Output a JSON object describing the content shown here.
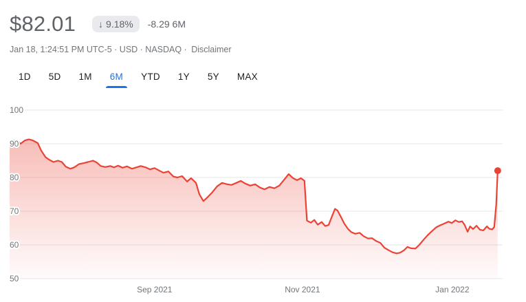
{
  "header": {
    "price": "$82.01",
    "change_badge": {
      "arrow": "↓",
      "percent": "9.18%"
    },
    "change_absolute": "-8.29 6M",
    "meta": "Jan 18, 1:24:51 PM UTC-5 · USD · NASDAQ ·",
    "disclaimer": "Disclaimer"
  },
  "tabs": [
    {
      "label": "1D",
      "active": false
    },
    {
      "label": "5D",
      "active": false
    },
    {
      "label": "1M",
      "active": false
    },
    {
      "label": "6M",
      "active": true
    },
    {
      "label": "YTD",
      "active": false
    },
    {
      "label": "1Y",
      "active": false
    },
    {
      "label": "5Y",
      "active": false
    },
    {
      "label": "MAX",
      "active": false
    }
  ],
  "colors": {
    "accent_blue": "#1a73e8",
    "line_red": "#ea4335",
    "grid": "#e3e5e8",
    "tick_text": "#70757a",
    "badge_bg": "#e8eaed",
    "muted_text": "#5f6368"
  },
  "chart_data": {
    "type": "area",
    "ylim": [
      50,
      100
    ],
    "yticks": [
      100,
      90,
      80,
      70,
      60,
      50
    ],
    "grid": true,
    "legend": false,
    "xticks": [
      {
        "label": "Sep 2021",
        "f": 0.294
      },
      {
        "label": "Nov 2021",
        "f": 0.594
      },
      {
        "label": "Jan 2022",
        "f": 0.898
      }
    ],
    "last_price": 82.01,
    "points": [
      [
        0.0,
        90.5
      ],
      [
        0.008,
        91.0
      ],
      [
        0.017,
        90.8
      ],
      [
        0.022,
        90.0
      ],
      [
        0.031,
        91.0
      ],
      [
        0.039,
        91.3
      ],
      [
        0.047,
        91.0
      ],
      [
        0.057,
        90.2
      ],
      [
        0.064,
        88.0
      ],
      [
        0.073,
        86.0
      ],
      [
        0.081,
        85.2
      ],
      [
        0.089,
        84.6
      ],
      [
        0.098,
        85.0
      ],
      [
        0.106,
        84.6
      ],
      [
        0.114,
        83.2
      ],
      [
        0.123,
        82.6
      ],
      [
        0.131,
        83.0
      ],
      [
        0.141,
        84.0
      ],
      [
        0.151,
        84.3
      ],
      [
        0.159,
        84.6
      ],
      [
        0.169,
        85.0
      ],
      [
        0.177,
        84.4
      ],
      [
        0.185,
        83.4
      ],
      [
        0.194,
        83.1
      ],
      [
        0.204,
        83.4
      ],
      [
        0.212,
        83.0
      ],
      [
        0.22,
        83.5
      ],
      [
        0.229,
        82.9
      ],
      [
        0.238,
        83.3
      ],
      [
        0.248,
        82.6
      ],
      [
        0.257,
        83.0
      ],
      [
        0.266,
        83.4
      ],
      [
        0.276,
        83.0
      ],
      [
        0.285,
        82.4
      ],
      [
        0.294,
        82.8
      ],
      [
        0.304,
        82.0
      ],
      [
        0.312,
        81.4
      ],
      [
        0.322,
        81.8
      ],
      [
        0.332,
        80.3
      ],
      [
        0.34,
        80.0
      ],
      [
        0.35,
        80.4
      ],
      [
        0.36,
        78.8
      ],
      [
        0.368,
        79.8
      ],
      [
        0.378,
        78.4
      ],
      [
        0.385,
        75.0
      ],
      [
        0.393,
        73.0
      ],
      [
        0.402,
        74.2
      ],
      [
        0.411,
        75.6
      ],
      [
        0.421,
        77.4
      ],
      [
        0.431,
        78.4
      ],
      [
        0.441,
        78.0
      ],
      [
        0.45,
        77.8
      ],
      [
        0.46,
        78.4
      ],
      [
        0.469,
        79.0
      ],
      [
        0.478,
        78.2
      ],
      [
        0.488,
        77.6
      ],
      [
        0.498,
        78.0
      ],
      [
        0.508,
        77.0
      ],
      [
        0.517,
        76.5
      ],
      [
        0.527,
        77.2
      ],
      [
        0.537,
        76.8
      ],
      [
        0.547,
        77.6
      ],
      [
        0.556,
        79.2
      ],
      [
        0.566,
        81.0
      ],
      [
        0.575,
        79.8
      ],
      [
        0.583,
        79.2
      ],
      [
        0.591,
        79.8
      ],
      [
        0.598,
        79.0
      ],
      [
        0.603,
        67.2
      ],
      [
        0.611,
        66.6
      ],
      [
        0.618,
        67.4
      ],
      [
        0.625,
        66.0
      ],
      [
        0.633,
        66.8
      ],
      [
        0.64,
        65.6
      ],
      [
        0.647,
        65.9
      ],
      [
        0.654,
        68.5
      ],
      [
        0.66,
        70.7
      ],
      [
        0.665,
        70.2
      ],
      [
        0.672,
        68.3
      ],
      [
        0.679,
        66.3
      ],
      [
        0.686,
        64.8
      ],
      [
        0.693,
        63.8
      ],
      [
        0.701,
        63.3
      ],
      [
        0.71,
        63.6
      ],
      [
        0.718,
        62.6
      ],
      [
        0.727,
        61.9
      ],
      [
        0.735,
        62.0
      ],
      [
        0.743,
        61.2
      ],
      [
        0.752,
        60.6
      ],
      [
        0.76,
        59.2
      ],
      [
        0.769,
        58.4
      ],
      [
        0.777,
        57.8
      ],
      [
        0.785,
        57.5
      ],
      [
        0.792,
        57.7
      ],
      [
        0.8,
        58.4
      ],
      [
        0.807,
        59.4
      ],
      [
        0.814,
        59.0
      ],
      [
        0.823,
        58.9
      ],
      [
        0.831,
        60.0
      ],
      [
        0.84,
        61.6
      ],
      [
        0.848,
        62.9
      ],
      [
        0.856,
        64.0
      ],
      [
        0.865,
        65.2
      ],
      [
        0.873,
        65.8
      ],
      [
        0.881,
        66.3
      ],
      [
        0.89,
        66.9
      ],
      [
        0.897,
        66.5
      ],
      [
        0.904,
        67.3
      ],
      [
        0.911,
        66.8
      ],
      [
        0.918,
        67.0
      ],
      [
        0.923,
        65.9
      ],
      [
        0.929,
        63.9
      ],
      [
        0.934,
        65.5
      ],
      [
        0.94,
        64.7
      ],
      [
        0.947,
        65.7
      ],
      [
        0.954,
        64.5
      ],
      [
        0.961,
        64.3
      ],
      [
        0.968,
        65.5
      ],
      [
        0.973,
        64.8
      ],
      [
        0.979,
        64.6
      ],
      [
        0.983,
        65.3
      ],
      [
        0.987,
        72.0
      ],
      [
        0.99,
        82.01
      ]
    ]
  }
}
